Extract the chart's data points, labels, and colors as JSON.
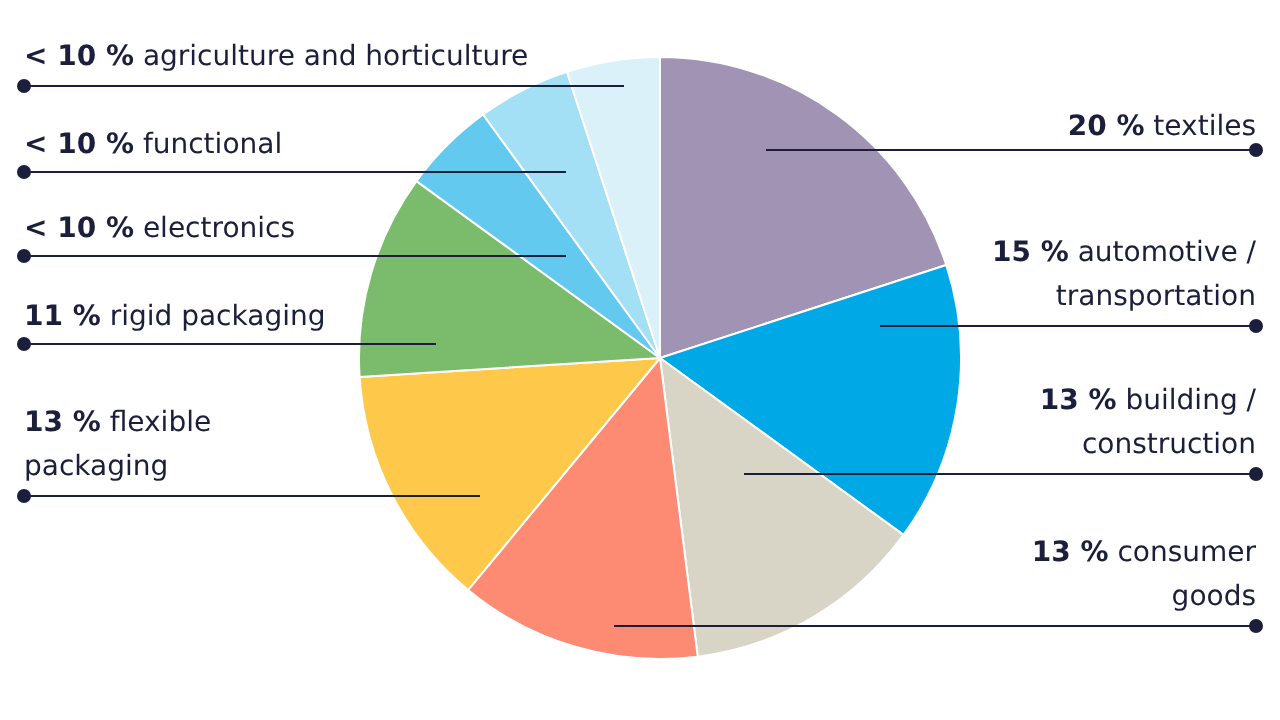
{
  "chart_data": {
    "type": "pie",
    "categories": [
      "textiles",
      "automotive / transportation",
      "building / construction",
      "consumer goods",
      "flexible packaging",
      "rigid packaging",
      "electronics",
      "functional",
      "agriculture and horticulture"
    ],
    "values": [
      20,
      15,
      13,
      13,
      13,
      11,
      5,
      5,
      5
    ],
    "value_labels": [
      "20 %",
      "15 %",
      "13 %",
      "13 %",
      "13 %",
      "11 %",
      "< 10 %",
      "< 10 %",
      "< 10 %"
    ],
    "colors": [
      "#a093b3",
      "#00a9e6",
      "#d8d4c6",
      "#fd8a72",
      "#fec84a",
      "#7bbb6c",
      "#63c9ef",
      "#a3dff5",
      "#daf1fa"
    ],
    "legend": false
  }
}
